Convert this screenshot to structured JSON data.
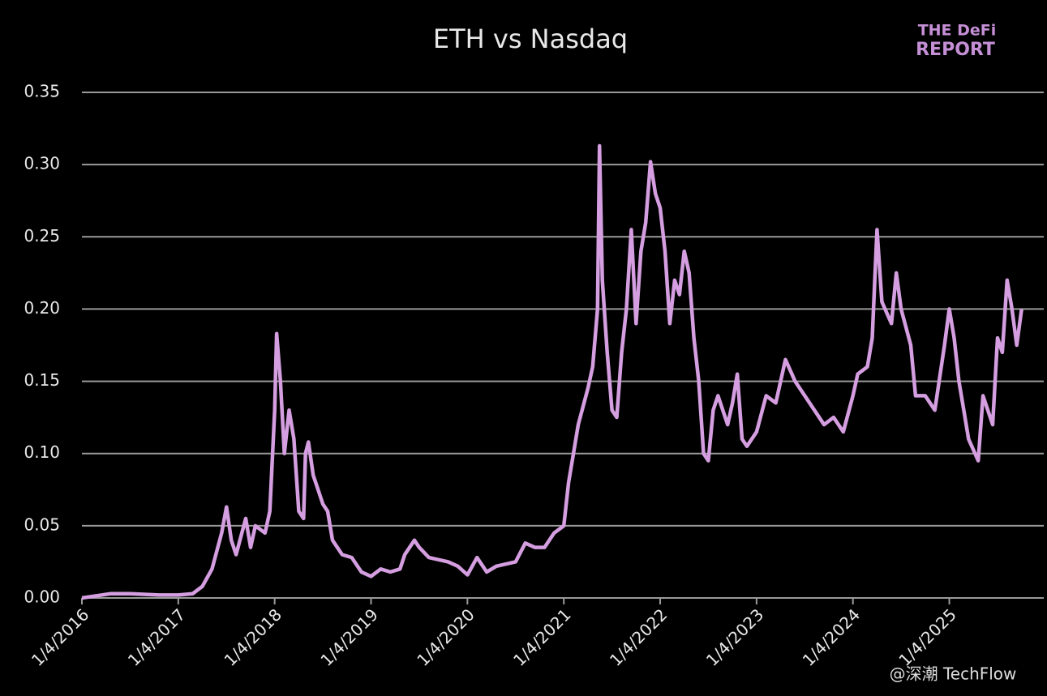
{
  "chart_data": {
    "type": "line",
    "title": "ETH vs Nasdaq",
    "annotations": [
      "THE DeFi",
      "REPORT",
      "@深潮 TechFlow"
    ],
    "x": [
      2016.0,
      2016.3,
      2016.5,
      2016.8,
      2017.0,
      2017.15,
      2017.25,
      2017.35,
      2017.45,
      2017.5,
      2017.55,
      2017.6,
      2017.7,
      2017.75,
      2017.8,
      2017.9,
      2017.95,
      2018.0,
      2018.02,
      2018.06,
      2018.1,
      2018.15,
      2018.2,
      2018.25,
      2018.3,
      2018.32,
      2018.35,
      2018.4,
      2018.45,
      2018.5,
      2018.55,
      2018.6,
      2018.7,
      2018.8,
      2018.9,
      2019.0,
      2019.1,
      2019.2,
      2019.3,
      2019.35,
      2019.45,
      2019.5,
      2019.6,
      2019.8,
      2019.9,
      2020.0,
      2020.1,
      2020.2,
      2020.3,
      2020.5,
      2020.6,
      2020.7,
      2020.8,
      2020.9,
      2021.0,
      2021.05,
      2021.1,
      2021.15,
      2021.25,
      2021.3,
      2021.35,
      2021.37,
      2021.4,
      2021.45,
      2021.5,
      2021.55,
      2021.6,
      2021.65,
      2021.7,
      2021.75,
      2021.8,
      2021.85,
      2021.9,
      2021.95,
      2022.0,
      2022.05,
      2022.1,
      2022.15,
      2022.2,
      2022.25,
      2022.3,
      2022.35,
      2022.4,
      2022.45,
      2022.5,
      2022.55,
      2022.6,
      2022.7,
      2022.75,
      2022.8,
      2022.85,
      2022.9,
      2023.0,
      2023.1,
      2023.2,
      2023.3,
      2023.4,
      2023.5,
      2023.6,
      2023.7,
      2023.8,
      2023.9,
      2024.0,
      2024.05,
      2024.15,
      2024.2,
      2024.25,
      2024.3,
      2024.4,
      2024.45,
      2024.5,
      2024.6,
      2024.65,
      2024.75,
      2024.85,
      2024.95,
      2025.0,
      2025.05,
      2025.1,
      2025.15,
      2025.2,
      2025.3,
      2025.35,
      2025.45,
      2025.5,
      2025.55,
      2025.6,
      2025.65,
      2025.7,
      2025.75
    ],
    "series": [
      {
        "name": "ETH vs Nasdaq",
        "color": "#d49ee0",
        "values": [
          0.0,
          0.003,
          0.003,
          0.002,
          0.002,
          0.003,
          0.008,
          0.02,
          0.045,
          0.063,
          0.04,
          0.03,
          0.055,
          0.035,
          0.05,
          0.045,
          0.06,
          0.13,
          0.183,
          0.15,
          0.1,
          0.13,
          0.11,
          0.06,
          0.055,
          0.1,
          0.108,
          0.085,
          0.075,
          0.065,
          0.06,
          0.04,
          0.03,
          0.028,
          0.018,
          0.015,
          0.02,
          0.018,
          0.02,
          0.03,
          0.04,
          0.035,
          0.028,
          0.025,
          0.022,
          0.016,
          0.028,
          0.018,
          0.022,
          0.025,
          0.038,
          0.035,
          0.035,
          0.045,
          0.05,
          0.08,
          0.1,
          0.12,
          0.145,
          0.16,
          0.2,
          0.313,
          0.22,
          0.17,
          0.13,
          0.125,
          0.17,
          0.2,
          0.255,
          0.19,
          0.24,
          0.26,
          0.302,
          0.28,
          0.27,
          0.24,
          0.19,
          0.22,
          0.21,
          0.24,
          0.225,
          0.18,
          0.15,
          0.1,
          0.095,
          0.13,
          0.14,
          0.12,
          0.135,
          0.155,
          0.11,
          0.105,
          0.115,
          0.14,
          0.135,
          0.165,
          0.15,
          0.14,
          0.13,
          0.12,
          0.125,
          0.115,
          0.14,
          0.155,
          0.16,
          0.18,
          0.255,
          0.205,
          0.19,
          0.225,
          0.2,
          0.175,
          0.14,
          0.14,
          0.13,
          0.175,
          0.2,
          0.18,
          0.15,
          0.13,
          0.11,
          0.095,
          0.14,
          0.12,
          0.18,
          0.17,
          0.22,
          0.2,
          0.175,
          0.2
        ]
      }
    ],
    "xlim": [
      2016.0,
      2025.98
    ],
    "xticks": [
      {
        "value": 2016.0,
        "label": "1/4/2016"
      },
      {
        "value": 2017.0,
        "label": "1/4/2017"
      },
      {
        "value": 2018.0,
        "label": "1/4/2018"
      },
      {
        "value": 2019.0,
        "label": "1/4/2019"
      },
      {
        "value": 2020.0,
        "label": "1/4/2020"
      },
      {
        "value": 2021.0,
        "label": "1/4/2021"
      },
      {
        "value": 2022.0,
        "label": "1/4/2022"
      },
      {
        "value": 2023.0,
        "label": "1/4/2023"
      },
      {
        "value": 2024.0,
        "label": "1/4/2024"
      },
      {
        "value": 2025.0,
        "label": "1/4/2025"
      }
    ],
    "ylim": [
      0,
      0.35
    ],
    "yticks": [
      {
        "value": 0,
        "label": "0.00"
      },
      {
        "value": 0.05,
        "label": "0.05"
      },
      {
        "value": 0.1,
        "label": "0.10"
      },
      {
        "value": 0.15,
        "label": "0.15"
      },
      {
        "value": 0.2,
        "label": "0.20"
      },
      {
        "value": 0.25,
        "label": "0.25"
      },
      {
        "value": 0.3,
        "label": "0.30"
      },
      {
        "value": 0.35,
        "label": "0.35"
      }
    ],
    "grid": true
  }
}
